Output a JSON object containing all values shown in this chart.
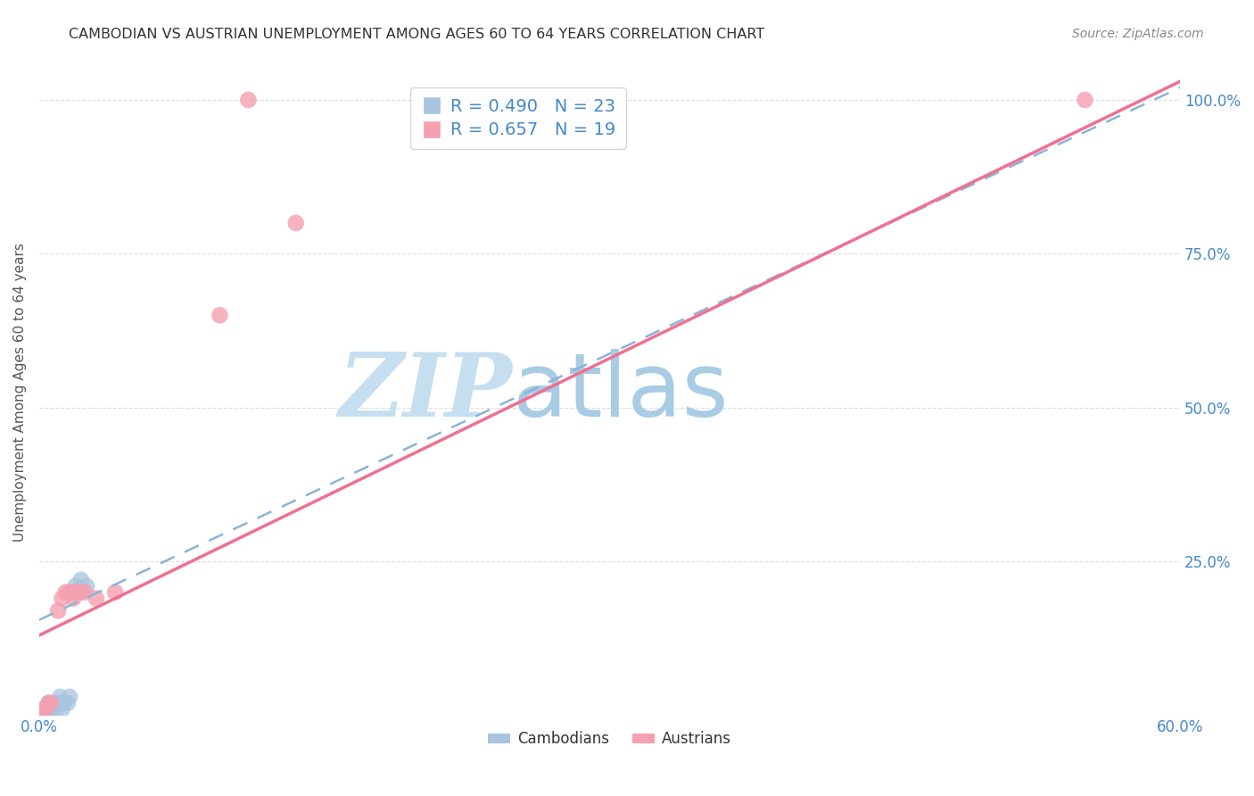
{
  "title": "CAMBODIAN VS AUSTRIAN UNEMPLOYMENT AMONG AGES 60 TO 64 YEARS CORRELATION CHART",
  "source": "Source: ZipAtlas.com",
  "ylabel": "Unemployment Among Ages 60 to 64 years",
  "xlim": [
    0.0,
    0.6
  ],
  "ylim": [
    0.0,
    1.05
  ],
  "xticks": [
    0.0,
    0.1,
    0.2,
    0.3,
    0.4,
    0.5,
    0.6
  ],
  "xticklabels": [
    "0.0%",
    "",
    "",
    "",
    "",
    "",
    "60.0%"
  ],
  "yticks": [
    0.0,
    0.25,
    0.5,
    0.75,
    1.0
  ],
  "yticklabels": [
    "",
    "25.0%",
    "50.0%",
    "75.0%",
    "100.0%"
  ],
  "cambodian_R": 0.49,
  "cambodian_N": 23,
  "austrian_R": 0.657,
  "austrian_N": 19,
  "cambodian_color": "#a8c4e0",
  "austrian_color": "#f4a0b0",
  "cambodian_scatter": [
    [
      0.0,
      0.0
    ],
    [
      0.0,
      0.0
    ],
    [
      0.0,
      0.0
    ],
    [
      0.0,
      0.0
    ],
    [
      0.0,
      0.0
    ],
    [
      0.003,
      0.01
    ],
    [
      0.004,
      0.01
    ],
    [
      0.005,
      0.02
    ],
    [
      0.006,
      0.0
    ],
    [
      0.007,
      0.01
    ],
    [
      0.008,
      0.02
    ],
    [
      0.009,
      0.01
    ],
    [
      0.01,
      0.02
    ],
    [
      0.011,
      0.03
    ],
    [
      0.012,
      0.01
    ],
    [
      0.013,
      0.02
    ],
    [
      0.015,
      0.02
    ],
    [
      0.016,
      0.03
    ],
    [
      0.018,
      0.2
    ],
    [
      0.019,
      0.21
    ],
    [
      0.02,
      0.2
    ],
    [
      0.022,
      0.22
    ],
    [
      0.025,
      0.21
    ]
  ],
  "austrian_scatter": [
    [
      0.0,
      0.0
    ],
    [
      0.002,
      0.01
    ],
    [
      0.003,
      0.01
    ],
    [
      0.005,
      0.02
    ],
    [
      0.006,
      0.02
    ],
    [
      0.01,
      0.17
    ],
    [
      0.012,
      0.19
    ],
    [
      0.014,
      0.2
    ],
    [
      0.016,
      0.2
    ],
    [
      0.018,
      0.19
    ],
    [
      0.02,
      0.2
    ],
    [
      0.022,
      0.2
    ],
    [
      0.024,
      0.2
    ],
    [
      0.03,
      0.19
    ],
    [
      0.04,
      0.2
    ],
    [
      0.095,
      0.65
    ],
    [
      0.11,
      1.0
    ],
    [
      0.135,
      0.8
    ],
    [
      0.55,
      1.0
    ]
  ],
  "cam_line_x0": 0.0,
  "cam_line_y0": 0.155,
  "cam_line_x1": 0.6,
  "cam_line_y1": 1.02,
  "aus_line_x0": 0.0,
  "aus_line_y0": 0.13,
  "aus_line_x1": 0.6,
  "aus_line_y1": 1.03,
  "watermark_zip": "ZIP",
  "watermark_atlas": "atlas",
  "watermark_color": "#cde3f5",
  "grid_color": "#dddddd",
  "title_color": "#333333",
  "axis_label_color": "#555555",
  "tick_color": "#4488cc",
  "cam_line_color": "#8ab4d8",
  "aus_line_color": "#f07090"
}
